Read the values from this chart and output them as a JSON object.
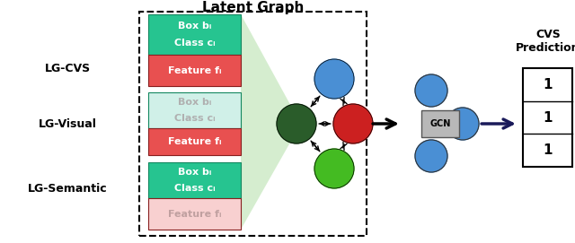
{
  "title": "Latent Graph",
  "bg_color": "#ffffff",
  "labels_left": [
    "LG-CVS",
    "LG-Visual",
    "LG-Semantic"
  ],
  "cvs_prediction_label": "CVS\nPrediction",
  "prediction_values": [
    "1",
    "1",
    "1"
  ],
  "teal_color": "#26c490",
  "light_teal_color": "#d0f0e8",
  "red_color": "#e85050",
  "light_red_color": "#f8d0d0",
  "blue_node": "#4a8fd4",
  "dark_green_node": "#2a5c2a",
  "red_node": "#cc2020",
  "green_node": "#44bb22",
  "gcn_gray": "#aaaaaa",
  "arrow_dark": "#1a1a5a"
}
